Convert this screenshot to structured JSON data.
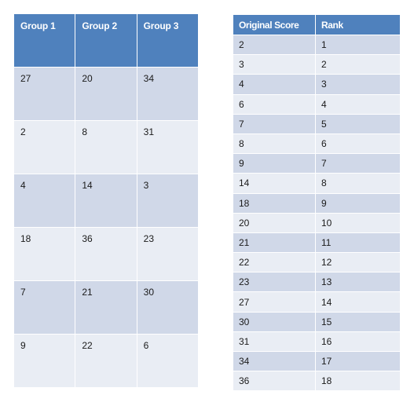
{
  "groups_table": {
    "headers": [
      "Group 1",
      "Group 2",
      "Group 3"
    ],
    "rows": [
      [
        "27",
        "20",
        "34"
      ],
      [
        "2",
        "8",
        "31"
      ],
      [
        "4",
        "14",
        "3"
      ],
      [
        "18",
        "36",
        "23"
      ],
      [
        "7",
        "21",
        "30"
      ],
      [
        "9",
        "22",
        "6"
      ]
    ]
  },
  "rank_table": {
    "headers": [
      "Original Score",
      "Rank"
    ],
    "rows": [
      [
        "2",
        "1"
      ],
      [
        "3",
        "2"
      ],
      [
        "4",
        "3"
      ],
      [
        "6",
        "4"
      ],
      [
        "7",
        "5"
      ],
      [
        "8",
        "6"
      ],
      [
        "9",
        "7"
      ],
      [
        "14",
        "8"
      ],
      [
        "18",
        "9"
      ],
      [
        "20",
        "10"
      ],
      [
        "21",
        "11"
      ],
      [
        "22",
        "12"
      ],
      [
        "23",
        "13"
      ],
      [
        "27",
        "14"
      ],
      [
        "30",
        "15"
      ],
      [
        "31",
        "16"
      ],
      [
        "34",
        "17"
      ],
      [
        "36",
        "18"
      ]
    ]
  },
  "colors": {
    "header": "#4f81bd",
    "row_dark": "#d0d8e8",
    "row_light": "#e9edf4"
  }
}
